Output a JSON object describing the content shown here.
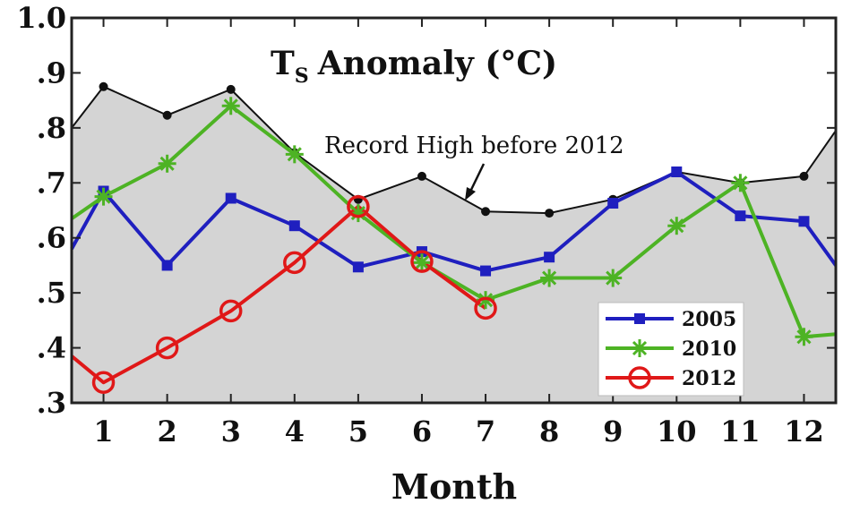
{
  "chart_data": {
    "type": "line",
    "title": "Anomaly (°C)",
    "title_symbol": "T",
    "title_subscript": "S",
    "xlabel": "Month",
    "ylabel": "",
    "xlim": [
      0.5,
      12.5
    ],
    "ylim": [
      0.3,
      1.0
    ],
    "y_ticks": [
      {
        "v": 0.3,
        "label": ".3"
      },
      {
        "v": 0.4,
        "label": ".4"
      },
      {
        "v": 0.5,
        "label": ".5"
      },
      {
        "v": 0.6,
        "label": ".6"
      },
      {
        "v": 0.7,
        "label": ".7"
      },
      {
        "v": 0.8,
        "label": ".8"
      },
      {
        "v": 0.9,
        "label": ".9"
      },
      {
        "v": 1.0,
        "label": "1.0"
      }
    ],
    "x_ticks": [
      {
        "v": 1,
        "label": "1"
      },
      {
        "v": 2,
        "label": "2"
      },
      {
        "v": 3,
        "label": "3"
      },
      {
        "v": 4,
        "label": "4"
      },
      {
        "v": 5,
        "label": "5"
      },
      {
        "v": 6,
        "label": "6"
      },
      {
        "v": 7,
        "label": "7"
      },
      {
        "v": 8,
        "label": "8"
      },
      {
        "v": 9,
        "label": "9"
      },
      {
        "v": 10,
        "label": "10"
      },
      {
        "v": 11,
        "label": "11"
      },
      {
        "v": 12,
        "label": "12"
      }
    ],
    "record_high": {
      "label": "Record High before 2012",
      "color": "#111111",
      "fill": "#d4d4d4",
      "x": [
        0.5,
        1,
        2,
        3,
        4,
        5,
        6,
        7,
        8,
        9,
        10,
        11,
        12,
        12.5
      ],
      "y": [
        0.8,
        0.875,
        0.823,
        0.87,
        0.755,
        0.67,
        0.712,
        0.648,
        0.645,
        0.67,
        0.72,
        0.7,
        0.712,
        0.795
      ]
    },
    "series": [
      {
        "name": "2005",
        "color": "#1f1fbf",
        "marker": "square",
        "x": [
          0.5,
          1,
          2,
          3,
          4,
          5,
          6,
          7,
          8,
          9,
          10,
          11,
          12,
          12.5
        ],
        "y": [
          0.58,
          0.685,
          0.55,
          0.672,
          0.622,
          0.547,
          0.575,
          0.54,
          0.565,
          0.663,
          0.72,
          0.64,
          0.63,
          0.55
        ]
      },
      {
        "name": "2010",
        "color": "#4db324",
        "marker": "star",
        "x": [
          0.5,
          1,
          2,
          3,
          4,
          5,
          6,
          7,
          8,
          9,
          10,
          11,
          12,
          12.5
        ],
        "y": [
          0.635,
          0.675,
          0.735,
          0.84,
          0.752,
          0.645,
          0.555,
          0.487,
          0.527,
          0.527,
          0.622,
          0.7,
          0.42,
          0.425
        ]
      },
      {
        "name": "2012",
        "color": "#e01818",
        "marker": "circle",
        "x": [
          0.5,
          1,
          2,
          3,
          4,
          5,
          6,
          7
        ],
        "y": [
          0.385,
          0.337,
          0.4,
          0.467,
          0.555,
          0.657,
          0.557,
          0.472
        ]
      }
    ],
    "legend_position": "bottom-right",
    "grid": false
  }
}
